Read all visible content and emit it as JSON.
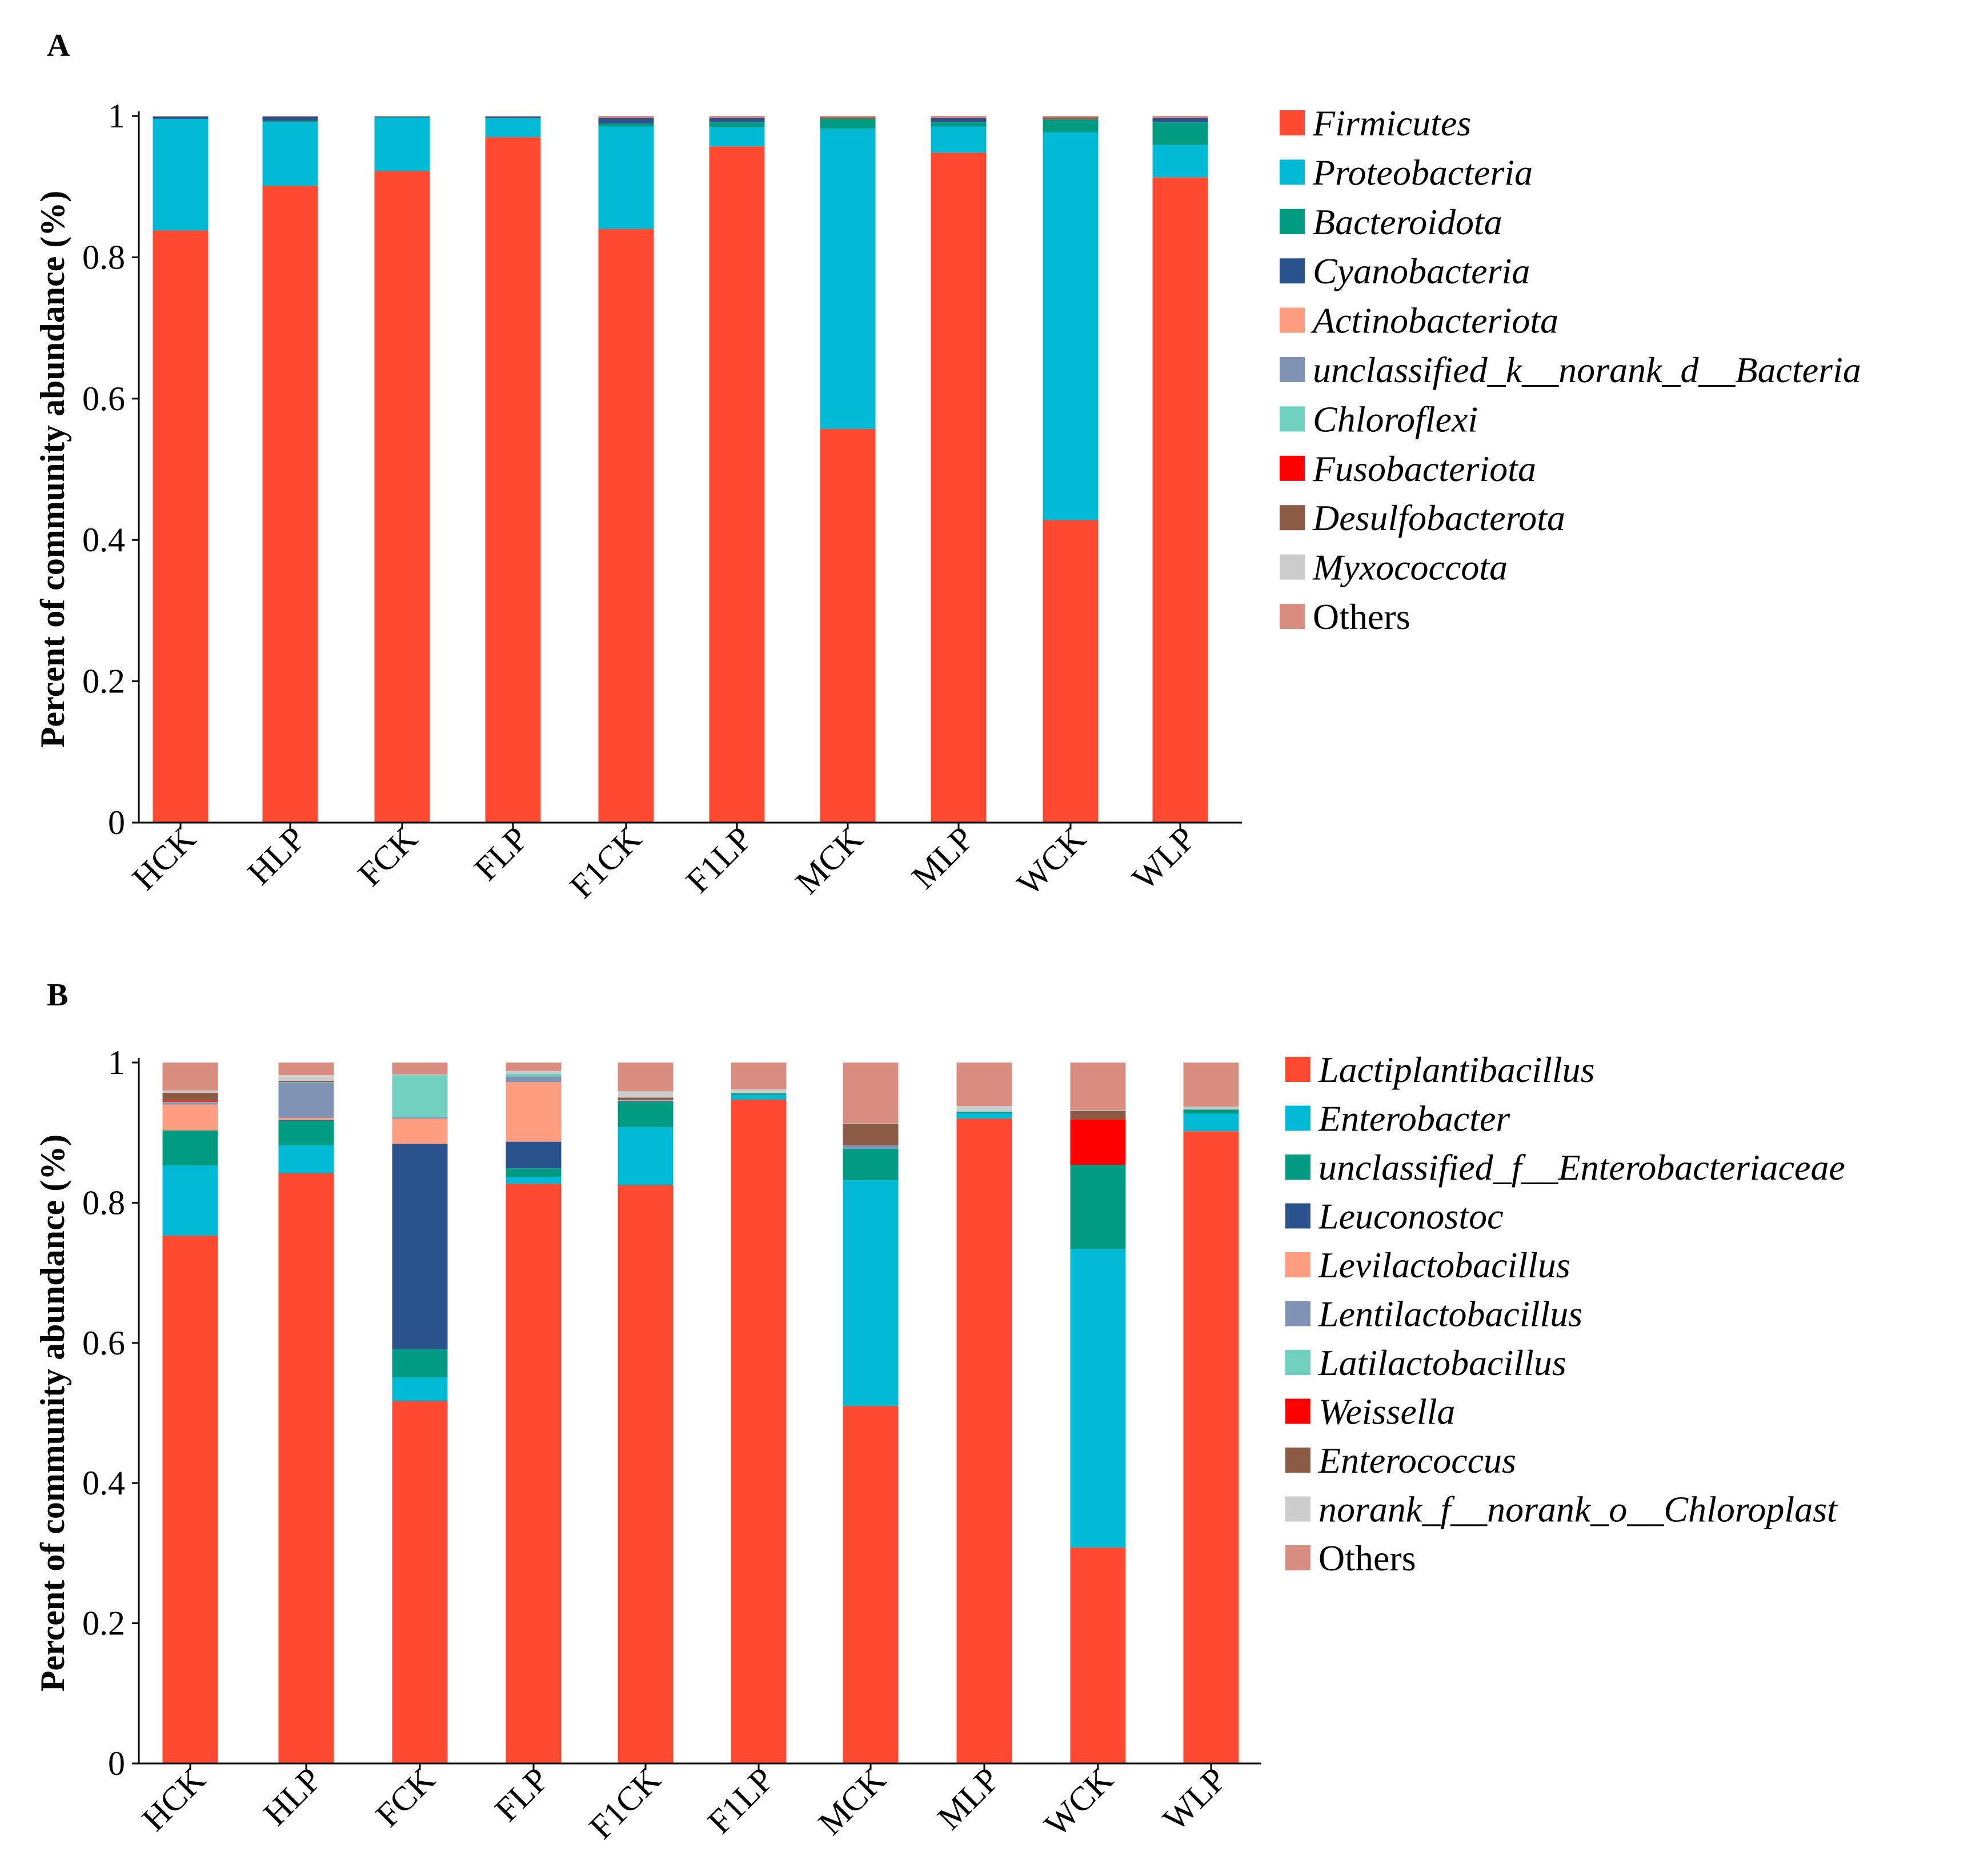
{
  "chart_data": [
    {
      "type": "bar",
      "stacked": true,
      "panel_label": "A",
      "ylabel": "Percent of community abundance (%)",
      "ylim": [
        0,
        1
      ],
      "yticks": [
        0,
        0.2,
        0.4,
        0.6,
        0.8,
        1
      ],
      "ytick_labels": [
        "0",
        "0.2",
        "0.4",
        "0.6",
        "0.8",
        "1"
      ],
      "categories": [
        "HCK",
        "HLP",
        "FCK",
        "FLP",
        "F1CK",
        "F1LP",
        "MCK",
        "MLP",
        "WCK",
        "WLP"
      ],
      "legend_position": "right",
      "series": [
        {
          "name": "Firmicutes",
          "italic": true,
          "color": "#FF4A31",
          "values": [
            0.838,
            0.901,
            0.922,
            0.97,
            0.84,
            0.957,
            0.557,
            0.948,
            0.428,
            0.913
          ]
        },
        {
          "name": "Proteobacteria",
          "italic": true,
          "color": "#00B9D4",
          "values": [
            0.158,
            0.09,
            0.076,
            0.027,
            0.145,
            0.027,
            0.425,
            0.037,
            0.549,
            0.046
          ]
        },
        {
          "name": "Bacteroidota",
          "italic": true,
          "color": "#009B80",
          "values": [
            0.0,
            0.002,
            0.0,
            0.0,
            0.004,
            0.007,
            0.014,
            0.006,
            0.018,
            0.032
          ]
        },
        {
          "name": "Cyanobacteria",
          "italic": true,
          "color": "#2A528C",
          "values": [
            0.003,
            0.006,
            0.001,
            0.002,
            0.008,
            0.006,
            0.0,
            0.006,
            0.0,
            0.006
          ]
        },
        {
          "name": "Actinobacteriota",
          "italic": true,
          "color": "#FF9D80",
          "values": [
            0.0,
            0.0,
            0.0,
            0.0,
            0.0,
            0.0,
            0.0,
            0.0,
            0.0,
            0.0
          ]
        },
        {
          "name": "unclassified_k__norank_d__Bacteria",
          "italic": true,
          "color": "#8193B4",
          "values": [
            0.0,
            0.0,
            0.0,
            0.0,
            0.0,
            0.0,
            0.0,
            0.0,
            0.0,
            0.0
          ]
        },
        {
          "name": "Chloroflexi",
          "italic": true,
          "color": "#6FD0BE",
          "values": [
            0.0,
            0.0,
            0.0,
            0.0,
            0.0,
            0.0,
            0.0,
            0.0,
            0.0,
            0.0
          ]
        },
        {
          "name": "Fusobacteriota",
          "italic": true,
          "color": "#FF0000",
          "values": [
            0.0,
            0.0,
            0.0,
            0.0,
            0.0,
            0.0,
            0.0,
            0.0,
            0.0,
            0.0
          ]
        },
        {
          "name": "Desulfobacterota",
          "italic": true,
          "color": "#8B5B45",
          "values": [
            0.0,
            0.0,
            0.0,
            0.0,
            0.0,
            0.0,
            0.002,
            0.0,
            0.003,
            0.0
          ]
        },
        {
          "name": "Myxococcota",
          "italic": true,
          "color": "#CCCCCC",
          "values": [
            0.0,
            0.0,
            0.0,
            0.0,
            0.0,
            0.0,
            0.0,
            0.0,
            0.0,
            0.0
          ]
        },
        {
          "name": "Others",
          "italic": false,
          "color": "#D98C80",
          "values": [
            0.001,
            0.001,
            0.001,
            0.001,
            0.003,
            0.003,
            0.002,
            0.003,
            0.002,
            0.003
          ]
        }
      ]
    },
    {
      "type": "bar",
      "stacked": true,
      "panel_label": "B",
      "ylabel": "Percent of community abundance (%)",
      "ylim": [
        0,
        1
      ],
      "yticks": [
        0,
        0.2,
        0.4,
        0.6,
        0.8,
        1
      ],
      "ytick_labels": [
        "0",
        "0.2",
        "0.4",
        "0.6",
        "0.8",
        "1"
      ],
      "categories": [
        "HCK",
        "HLP",
        "FCK",
        "FLP",
        "F1CK",
        "F1LP",
        "MCK",
        "MLP",
        "WCK",
        "WLP"
      ],
      "legend_position": "right",
      "series": [
        {
          "name": "Lactiplantibacillus",
          "italic": true,
          "color": "#FF4A31",
          "values": [
            0.753,
            0.842,
            0.517,
            0.827,
            0.825,
            0.947,
            0.51,
            0.92,
            0.308,
            0.902
          ]
        },
        {
          "name": "Enterobacter",
          "italic": true,
          "color": "#00B9D4",
          "values": [
            0.1,
            0.04,
            0.034,
            0.01,
            0.083,
            0.007,
            0.322,
            0.008,
            0.426,
            0.025
          ]
        },
        {
          "name": "unclassified_f__Enterobacteriaceae",
          "italic": true,
          "color": "#009B80",
          "values": [
            0.05,
            0.035,
            0.04,
            0.012,
            0.036,
            0.002,
            0.045,
            0.002,
            0.12,
            0.006
          ]
        },
        {
          "name": "Leuconostoc",
          "italic": true,
          "color": "#2A528C",
          "values": [
            0.0,
            0.001,
            0.293,
            0.038,
            0.001,
            0.0,
            0.0,
            0.0,
            0.0,
            0.0
          ]
        },
        {
          "name": "Levilactobacillus",
          "italic": true,
          "color": "#FF9D80",
          "values": [
            0.037,
            0.003,
            0.036,
            0.085,
            0.001,
            0.0,
            0.0,
            0.0,
            0.0,
            0.0
          ]
        },
        {
          "name": "Lentilactobacillus",
          "italic": true,
          "color": "#8193B4",
          "values": [
            0.003,
            0.05,
            0.002,
            0.008,
            0.001,
            0.0,
            0.005,
            0.0,
            0.0,
            0.0
          ]
        },
        {
          "name": "Latilactobacillus",
          "italic": true,
          "color": "#6FD0BE",
          "values": [
            0.001,
            0.001,
            0.06,
            0.004,
            0.0,
            0.0,
            0.0,
            0.0,
            0.0,
            0.0
          ]
        },
        {
          "name": "Weissella",
          "italic": true,
          "color": "#FF0000",
          "values": [
            0.002,
            0.0,
            0.0,
            0.0,
            0.0,
            0.0,
            0.0,
            0.0,
            0.065,
            0.0
          ]
        },
        {
          "name": "Enterococcus",
          "italic": true,
          "color": "#8B5B45",
          "values": [
            0.011,
            0.002,
            0.0,
            0.0,
            0.003,
            0.0,
            0.03,
            0.0,
            0.012,
            0.0
          ]
        },
        {
          "name": "norank_f__norank_o__Chloroplast",
          "italic": true,
          "color": "#CCCCCC",
          "values": [
            0.003,
            0.008,
            0.001,
            0.004,
            0.009,
            0.006,
            0.001,
            0.008,
            0.001,
            0.004
          ]
        },
        {
          "name": "Others",
          "italic": false,
          "color": "#D98C80",
          "values": [
            0.04,
            0.018,
            0.017,
            0.012,
            0.041,
            0.038,
            0.087,
            0.062,
            0.068,
            0.063
          ]
        }
      ]
    }
  ]
}
